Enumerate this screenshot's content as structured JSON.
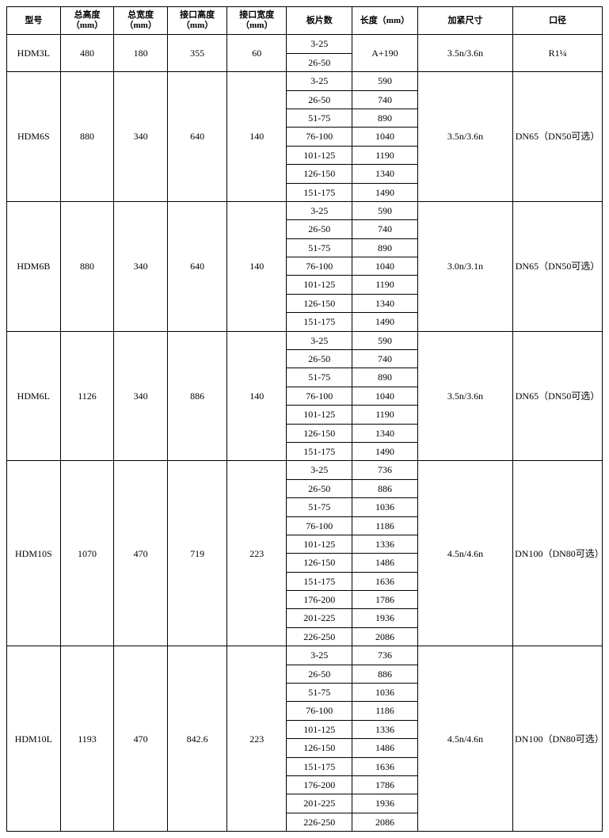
{
  "headers": [
    "型号",
    "总高度（mm）",
    "总宽度（mm）",
    "接口高度（mm）",
    "接口宽度（mm）",
    "板片数",
    "长度（mm）",
    "加紧尺寸",
    "口径"
  ],
  "col_widths": [
    "9%",
    "9%",
    "9%",
    "10%",
    "10%",
    "11%",
    "11%",
    "16%",
    "15%"
  ],
  "models": [
    {
      "model": "HDM3L",
      "total_height": "480",
      "total_width": "180",
      "interface_height": "355",
      "interface_width": "60",
      "plate_rows": [
        {
          "plates": "3-25",
          "length": "A+190",
          "length_span": 2
        },
        {
          "plates": "26-50"
        }
      ],
      "tighten": "3.5n/3.6n",
      "caliber": "R1¼"
    },
    {
      "model": "HDM6S",
      "total_height": "880",
      "total_width": "340",
      "interface_height": "640",
      "interface_width": "140",
      "plate_rows": [
        {
          "plates": "3-25",
          "length": "590"
        },
        {
          "plates": "26-50",
          "length": "740"
        },
        {
          "plates": "51-75",
          "length": "890"
        },
        {
          "plates": "76-100",
          "length": "1040"
        },
        {
          "plates": "101-125",
          "length": "1190"
        },
        {
          "plates": "126-150",
          "length": "1340"
        },
        {
          "plates": "151-175",
          "length": "1490"
        }
      ],
      "tighten": "3.5n/3.6n",
      "caliber": "DN65（DN50可选）"
    },
    {
      "model": "HDM6B",
      "total_height": "880",
      "total_width": "340",
      "interface_height": "640",
      "interface_width": "140",
      "plate_rows": [
        {
          "plates": "3-25",
          "length": "590"
        },
        {
          "plates": "26-50",
          "length": "740"
        },
        {
          "plates": "51-75",
          "length": "890"
        },
        {
          "plates": "76-100",
          "length": "1040"
        },
        {
          "plates": "101-125",
          "length": "1190"
        },
        {
          "plates": "126-150",
          "length": "1340"
        },
        {
          "plates": "151-175",
          "length": "1490"
        }
      ],
      "tighten": "3.0n/3.1n",
      "caliber": "DN65（DN50可选）"
    },
    {
      "model": "HDM6L",
      "total_height": "1126",
      "total_width": "340",
      "interface_height": "886",
      "interface_width": "140",
      "plate_rows": [
        {
          "plates": "3-25",
          "length": "590"
        },
        {
          "plates": "26-50",
          "length": "740"
        },
        {
          "plates": "51-75",
          "length": "890"
        },
        {
          "plates": "76-100",
          "length": "1040"
        },
        {
          "plates": "101-125",
          "length": "1190"
        },
        {
          "plates": "126-150",
          "length": "1340"
        },
        {
          "plates": "151-175",
          "length": "1490"
        }
      ],
      "tighten": "3.5n/3.6n",
      "caliber": "DN65（DN50可选）"
    },
    {
      "model": "HDM10S",
      "total_height": "1070",
      "total_width": "470",
      "interface_height": "719",
      "interface_width": "223",
      "plate_rows": [
        {
          "plates": "3-25",
          "length": "736"
        },
        {
          "plates": "26-50",
          "length": "886"
        },
        {
          "plates": "51-75",
          "length": "1036"
        },
        {
          "plates": "76-100",
          "length": "1186"
        },
        {
          "plates": "101-125",
          "length": "1336"
        },
        {
          "plates": "126-150",
          "length": "1486"
        },
        {
          "plates": "151-175",
          "length": "1636"
        },
        {
          "plates": "176-200",
          "length": "1786"
        },
        {
          "plates": "201-225",
          "length": "1936"
        },
        {
          "plates": "226-250",
          "length": "2086"
        }
      ],
      "tighten": "4.5n/4.6n",
      "caliber": "DN100（DN80可选）"
    },
    {
      "model": "HDM10L",
      "total_height": "1193",
      "total_width": "470",
      "interface_height": "842.6",
      "interface_width": "223",
      "plate_rows": [
        {
          "plates": "3-25",
          "length": "736"
        },
        {
          "plates": "26-50",
          "length": "886"
        },
        {
          "plates": "51-75",
          "length": "1036"
        },
        {
          "plates": "76-100",
          "length": "1186"
        },
        {
          "plates": "101-125",
          "length": "1336"
        },
        {
          "plates": "126-150",
          "length": "1486"
        },
        {
          "plates": "151-175",
          "length": "1636"
        },
        {
          "plates": "176-200",
          "length": "1786"
        },
        {
          "plates": "201-225",
          "length": "1936"
        },
        {
          "plates": "226-250",
          "length": "2086"
        }
      ],
      "tighten": "4.5n/4.6n",
      "caliber": "DN100（DN80可选）"
    }
  ]
}
